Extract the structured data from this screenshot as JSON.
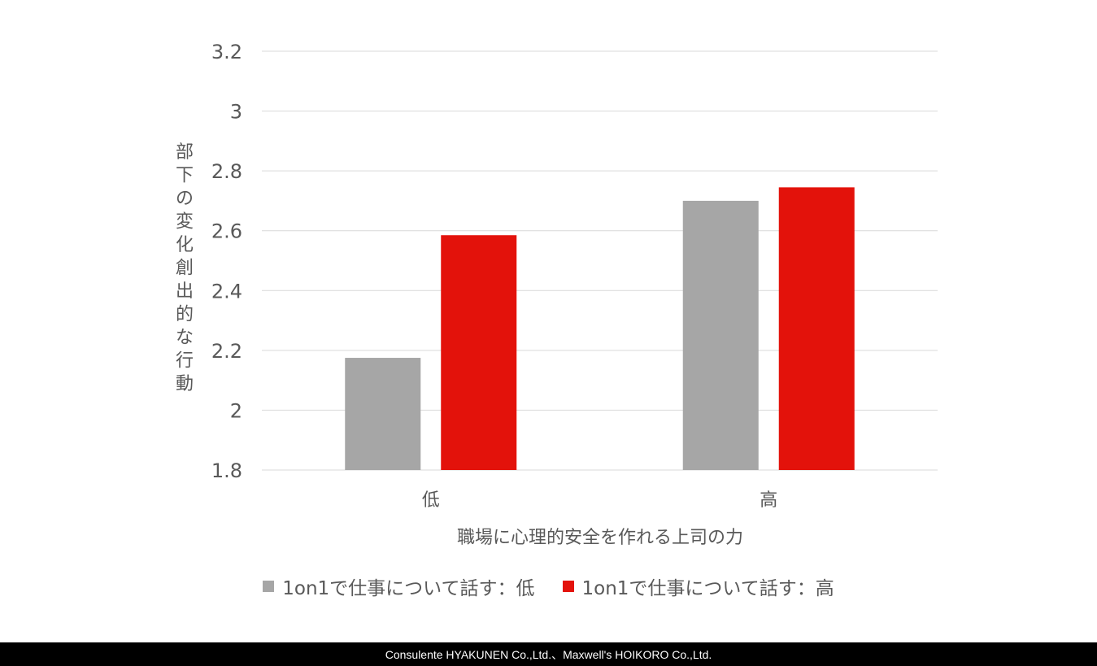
{
  "chart_data": {
    "type": "bar",
    "categories": [
      "低",
      "高"
    ],
    "series": [
      {
        "name": "1on1で仕事について話す：低",
        "values": [
          2.175,
          2.7
        ],
        "color": "#a6a6a6"
      },
      {
        "name": "1on1で仕事について話す：高",
        "values": [
          2.585,
          2.745
        ],
        "color": "#e3120b"
      }
    ],
    "xlabel": "職場に心理的安全を作れる上司の力",
    "ylabel": "部下の変化創出的な行動",
    "ylim": [
      1.8,
      3.2
    ],
    "yticks": [
      "3.2",
      "3",
      "2.8",
      "2.6",
      "2.4",
      "2.2",
      "2",
      "1.8"
    ],
    "ytick_values": [
      3.2,
      3.0,
      2.8,
      2.6,
      2.4,
      2.2,
      2.0,
      1.8
    ],
    "grid": true,
    "legend_position": "bottom"
  },
  "footer": {
    "text": "Consulente HYAKUNEN Co.,Ltd.、Maxwell's HOIKORO Co.,Ltd."
  }
}
